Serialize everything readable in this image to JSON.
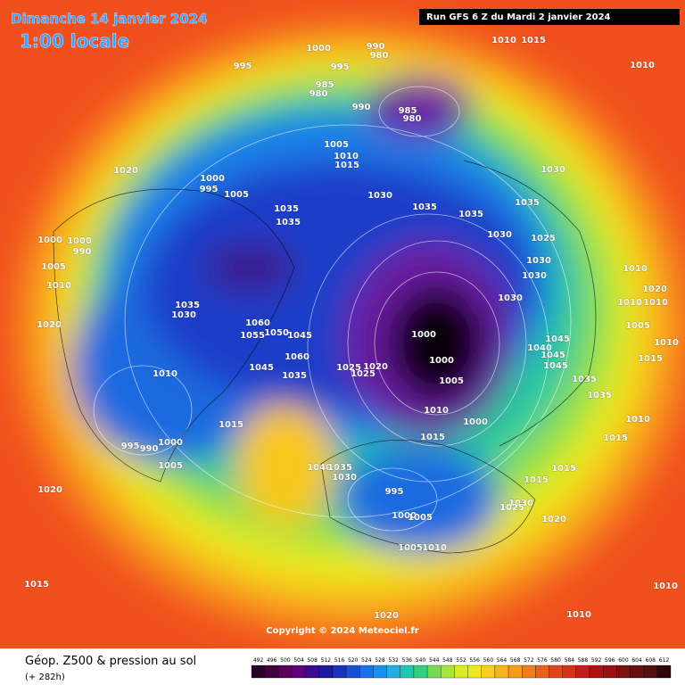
{
  "header": {
    "date": "Dimanche 14 janvier 2024",
    "time": "1:00 locale",
    "run": "Run GFS 6 Z du Mardi 2 janvier 2024"
  },
  "footer": {
    "title": "Géop. Z500 & pression au sol",
    "lead": "(+ 282h)",
    "copyright": "Copyright © 2024 Meteociel.fr"
  },
  "colorbar": {
    "ticks": [
      492,
      496,
      500,
      504,
      508,
      512,
      516,
      520,
      524,
      528,
      532,
      536,
      540,
      544,
      548,
      552,
      556,
      560,
      564,
      568,
      572,
      576,
      580,
      584,
      588,
      592,
      596,
      600,
      604,
      608,
      612
    ]
  },
  "isobar_labels": [
    "1000",
    "995",
    "995",
    "990",
    "980",
    "985",
    "980",
    "990",
    "985",
    "980",
    "1010",
    "1015",
    "1010",
    "1005",
    "1010",
    "1015",
    "1020",
    "1000",
    "995",
    "1005",
    "1030",
    "1035",
    "1035",
    "1035",
    "1030",
    "1035",
    "1035",
    "1030",
    "1025",
    "1000",
    "1000",
    "990",
    "1005",
    "1010",
    "1030",
    "1030",
    "1010",
    "1020",
    "1010",
    "1010",
    "1030",
    "1035",
    "1030",
    "1020",
    "1060",
    "1055",
    "1050",
    "1045",
    "1005",
    "1000",
    "1060",
    "1045",
    "1025",
    "1020",
    "1000",
    "1010",
    "1045",
    "1040",
    "1045",
    "1045",
    "1015",
    "1035",
    "1025",
    "1010",
    "1005",
    "1035",
    "1035",
    "1010",
    "1010",
    "1015",
    "1015",
    "1000",
    "1015",
    "995",
    "990",
    "1000",
    "1005",
    "1040",
    "1035",
    "1030",
    "1015",
    "995",
    "1015",
    "1020",
    "1000",
    "1005",
    "1030",
    "1025",
    "1020",
    "1005",
    "1010",
    "1015",
    "1010",
    "1010",
    "1020"
  ]
}
